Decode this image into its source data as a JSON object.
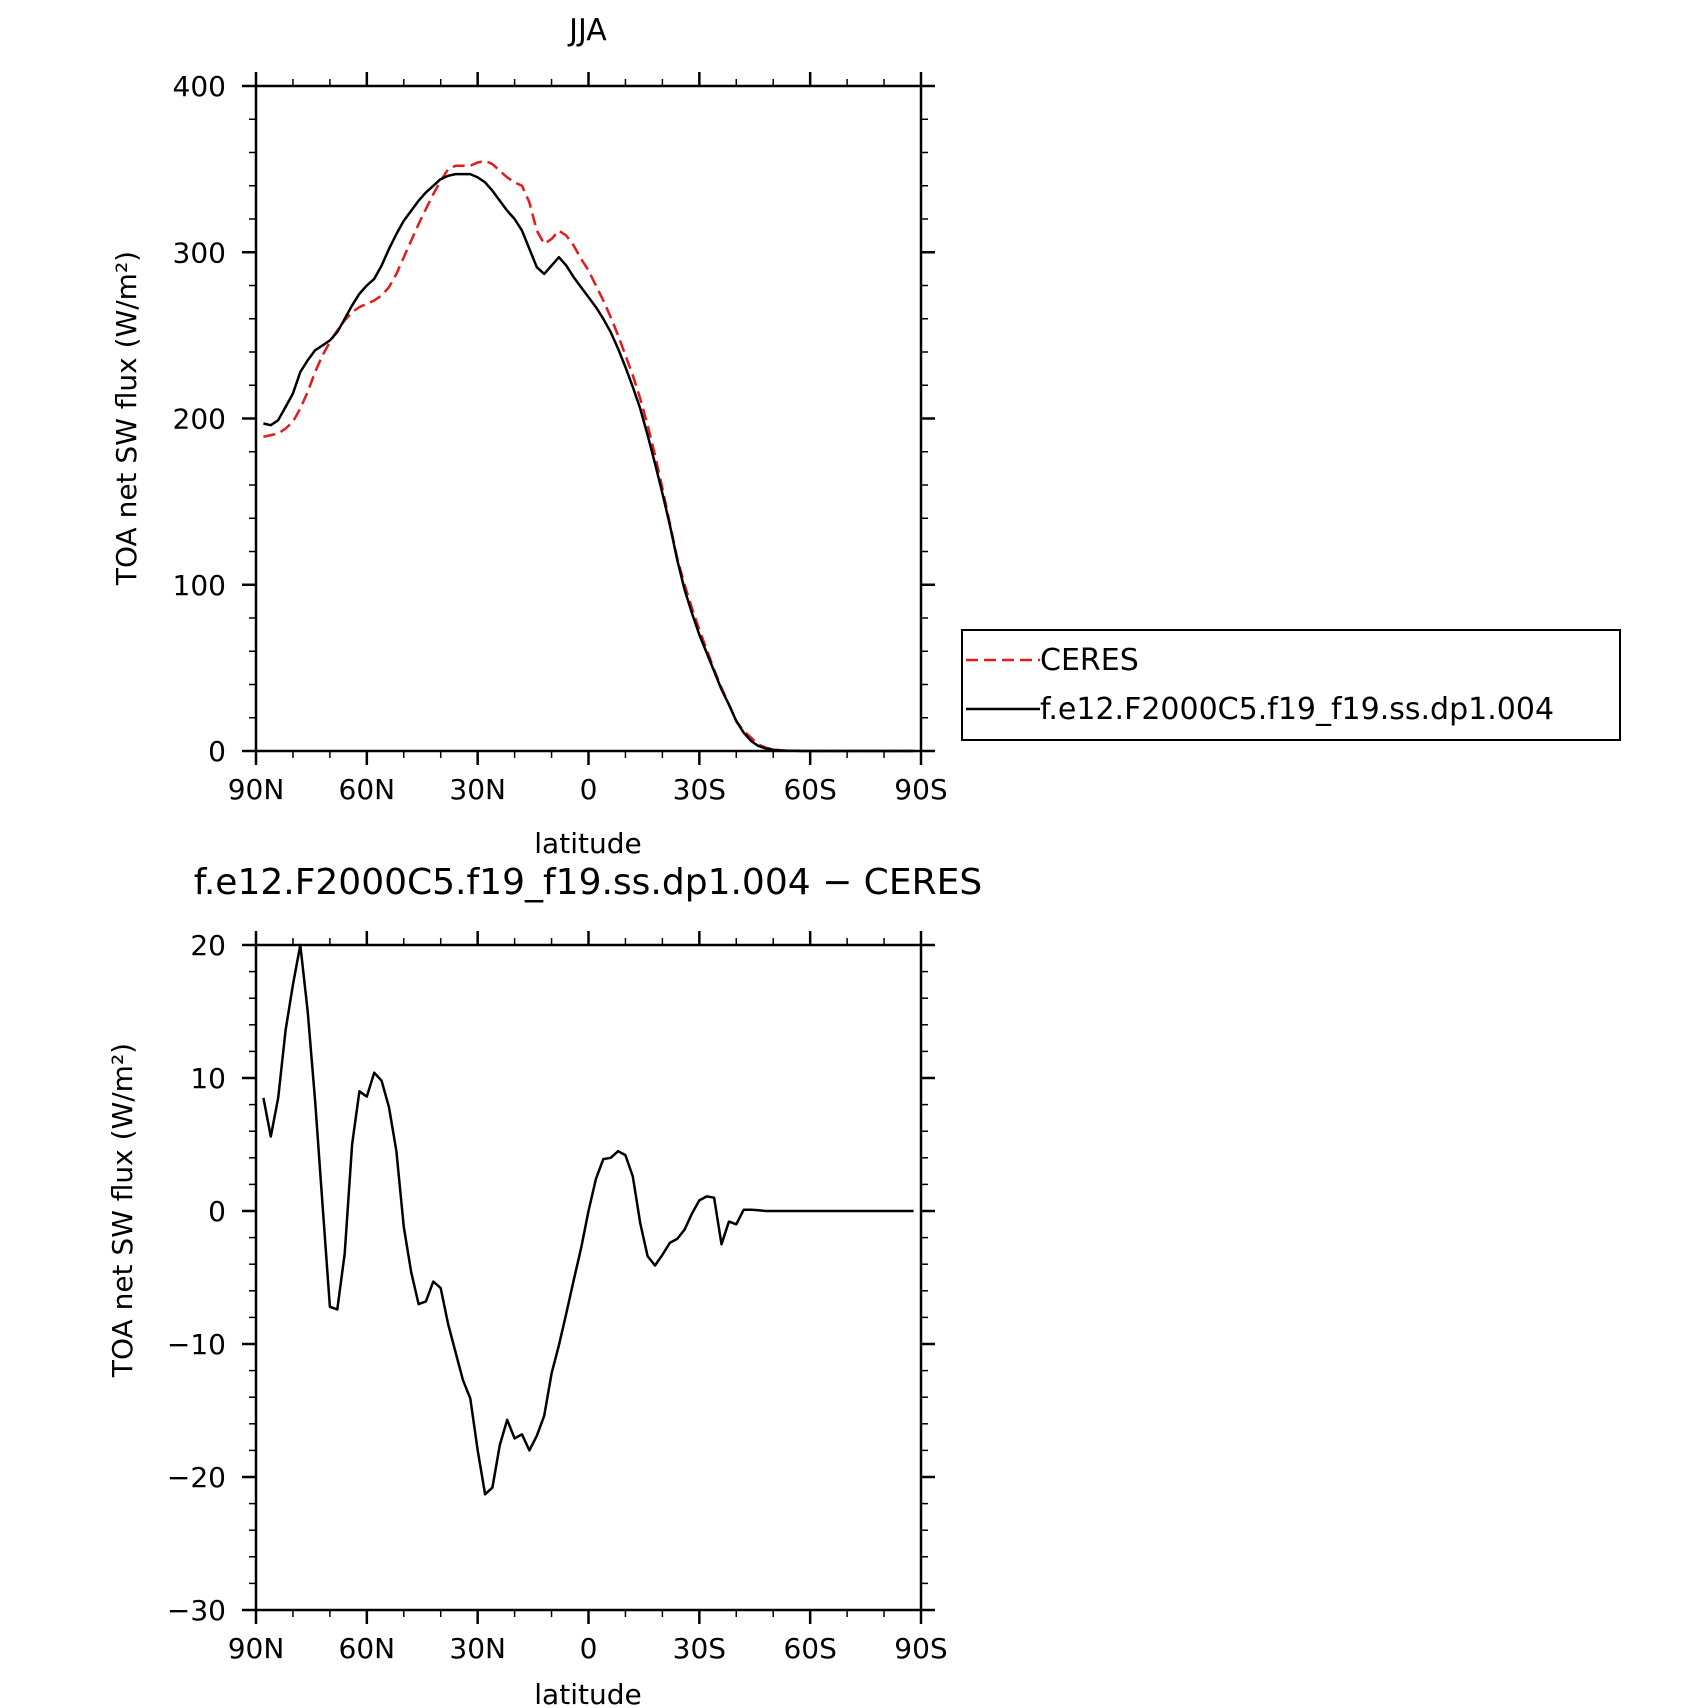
{
  "chart_data": [
    {
      "type": "line",
      "title": "JJA",
      "xlabel": "latitude",
      "ylabel": "TOA net SW flux (W/m²)",
      "x_ticks": [
        90,
        60,
        30,
        0,
        -30,
        -60,
        -90
      ],
      "x_tick_labels": [
        "90N",
        "60N",
        "30N",
        "0",
        "30S",
        "60S",
        "90S"
      ],
      "xlim": [
        90,
        -90
      ],
      "ylim": [
        0,
        400
      ],
      "y_ticks": [
        0,
        100,
        200,
        300,
        400
      ],
      "y_tick_labels": [
        "0",
        "100",
        "200",
        "300",
        "400"
      ],
      "legend_position": "right-outside",
      "x": [
        88,
        86,
        84,
        82,
        80,
        78,
        76,
        74,
        72,
        70,
        68,
        66,
        64,
        62,
        60,
        58,
        56,
        54,
        52,
        50,
        48,
        46,
        44,
        42,
        40,
        38,
        36,
        34,
        32,
        30,
        28,
        26,
        24,
        22,
        20,
        18,
        16,
        14,
        12,
        10,
        8,
        6,
        4,
        2,
        0,
        -2,
        -4,
        -6,
        -8,
        -10,
        -12,
        -14,
        -16,
        -18,
        -20,
        -22,
        -24,
        -26,
        -28,
        -30,
        -32,
        -34,
        -36,
        -38,
        -40,
        -42,
        -44,
        -46,
        -48,
        -50,
        -52,
        -54,
        -56,
        -58,
        -60,
        -62,
        -64,
        -66,
        -68,
        -70,
        -72,
        -74,
        -76,
        -78,
        -80,
        -82,
        -84,
        -86,
        -88
      ],
      "series": [
        {
          "name": "CERES",
          "color": "#e41a1c",
          "style": "dashed",
          "values": [
            189,
            190,
            191,
            194,
            198,
            206,
            216,
            228,
            238,
            246,
            253,
            259,
            264,
            267,
            269,
            271,
            274,
            279,
            287,
            297,
            307,
            317,
            326,
            335,
            343,
            350,
            352,
            352,
            352,
            354,
            355,
            353,
            349,
            345,
            342,
            340,
            330,
            313,
            305,
            308,
            313,
            310,
            304,
            296,
            289,
            280,
            271,
            261,
            250,
            238,
            226,
            212,
            196,
            178,
            158,
            137,
            116,
            100,
            86,
            73,
            61,
            49,
            38,
            28,
            18,
            12,
            8,
            4,
            2,
            1,
            0.5,
            0.2,
            0.1,
            0,
            0,
            0,
            0,
            0,
            0,
            0,
            0,
            0,
            0,
            0,
            0,
            0,
            0,
            0,
            0
          ]
        },
        {
          "name": "f.e12.F2000C5.f19_f19.ss.dp1.004",
          "color": "#000000",
          "style": "solid",
          "values": [
            197,
            196,
            199,
            207,
            215,
            228,
            235,
            241,
            244,
            247,
            252,
            260,
            268,
            275,
            280,
            284,
            292,
            302,
            311,
            319,
            325,
            331,
            336,
            340,
            344,
            346,
            347,
            347,
            347,
            345,
            342,
            337,
            331,
            325,
            320,
            313,
            302,
            291,
            287,
            292,
            297,
            292,
            285,
            279,
            273,
            267,
            260,
            252,
            242,
            231,
            219,
            206,
            190,
            173,
            155,
            136,
            115,
            97,
            83,
            70,
            59,
            48,
            37,
            28,
            18,
            11,
            6,
            3,
            1.5,
            0.8,
            0.3,
            0.2,
            0.1,
            0,
            0,
            0,
            0,
            0,
            0,
            0,
            0,
            0,
            0,
            0,
            0,
            0,
            0,
            0,
            0
          ]
        }
      ]
    },
    {
      "type": "line",
      "title": "f.e12.F2000C5.f19_f19.ss.dp1.004 − CERES",
      "xlabel": "latitude",
      "ylabel": "TOA net SW flux (W/m²)",
      "x_ticks": [
        90,
        60,
        30,
        0,
        -30,
        -60,
        -90
      ],
      "x_tick_labels": [
        "90N",
        "60N",
        "30N",
        "0",
        "30S",
        "60S",
        "90S"
      ],
      "xlim": [
        90,
        -90
      ],
      "ylim": [
        -30,
        20
      ],
      "y_ticks": [
        -30,
        -20,
        -10,
        0,
        10,
        20
      ],
      "y_tick_labels": [
        "−30",
        "−20",
        "−10",
        "0",
        "10",
        "20"
      ],
      "x": [
        88,
        86,
        84,
        82,
        80,
        78,
        76,
        74,
        72,
        70,
        68,
        66,
        64,
        62,
        60,
        58,
        56,
        54,
        52,
        50,
        48,
        46,
        44,
        42,
        40,
        38,
        36,
        34,
        32,
        30,
        28,
        26,
        24,
        22,
        20,
        18,
        16,
        14,
        12,
        10,
        8,
        6,
        4,
        2,
        0,
        -2,
        -4,
        -6,
        -8,
        -10,
        -12,
        -14,
        -16,
        -18,
        -20,
        -22,
        -24,
        -26,
        -28,
        -30,
        -32,
        -34,
        -36,
        -38,
        -40,
        -42,
        -44,
        -46,
        -48,
        -50,
        -52,
        -54,
        -56,
        -58,
        -60,
        -62,
        -64,
        -66,
        -68,
        -70,
        -72,
        -74,
        -76,
        -78,
        -80,
        -82,
        -84,
        -86,
        -88
      ],
      "series": [
        {
          "name": "",
          "color": "#000000",
          "style": "solid",
          "values": [
            8.5,
            5.6,
            8.5,
            13.6,
            17.0,
            20.0,
            15.0,
            8.3,
            0.5,
            -7.2,
            -7.4,
            -3.2,
            5.0,
            9.0,
            8.6,
            10.4,
            9.8,
            7.8,
            4.5,
            -1.2,
            -4.6,
            -7.0,
            -6.8,
            -5.3,
            -5.8,
            -8.5,
            -10.6,
            -12.7,
            -14.1,
            -18.0,
            -21.3,
            -20.8,
            -17.6,
            -15.7,
            -17.1,
            -16.8,
            -18.0,
            -16.9,
            -15.4,
            -12.2,
            -10.1,
            -7.7,
            -5.2,
            -2.8,
            0.0,
            2.4,
            3.9,
            4.0,
            4.5,
            4.2,
            2.6,
            -0.9,
            -3.4,
            -4.1,
            -3.3,
            -2.4,
            -2.1,
            -1.4,
            -0.2,
            0.8,
            1.1,
            1.0,
            -2.5,
            -0.8,
            -1.0,
            0.1,
            0.1,
            0.05,
            0.0,
            0.0,
            0.0,
            0.0,
            0.0,
            0.0,
            0.0,
            0.0,
            0.0,
            0.0,
            0.0,
            0.0,
            0.0,
            0.0,
            0.0,
            0.0,
            0.0,
            0.0,
            0.0,
            0.0,
            0.0
          ]
        }
      ]
    }
  ]
}
